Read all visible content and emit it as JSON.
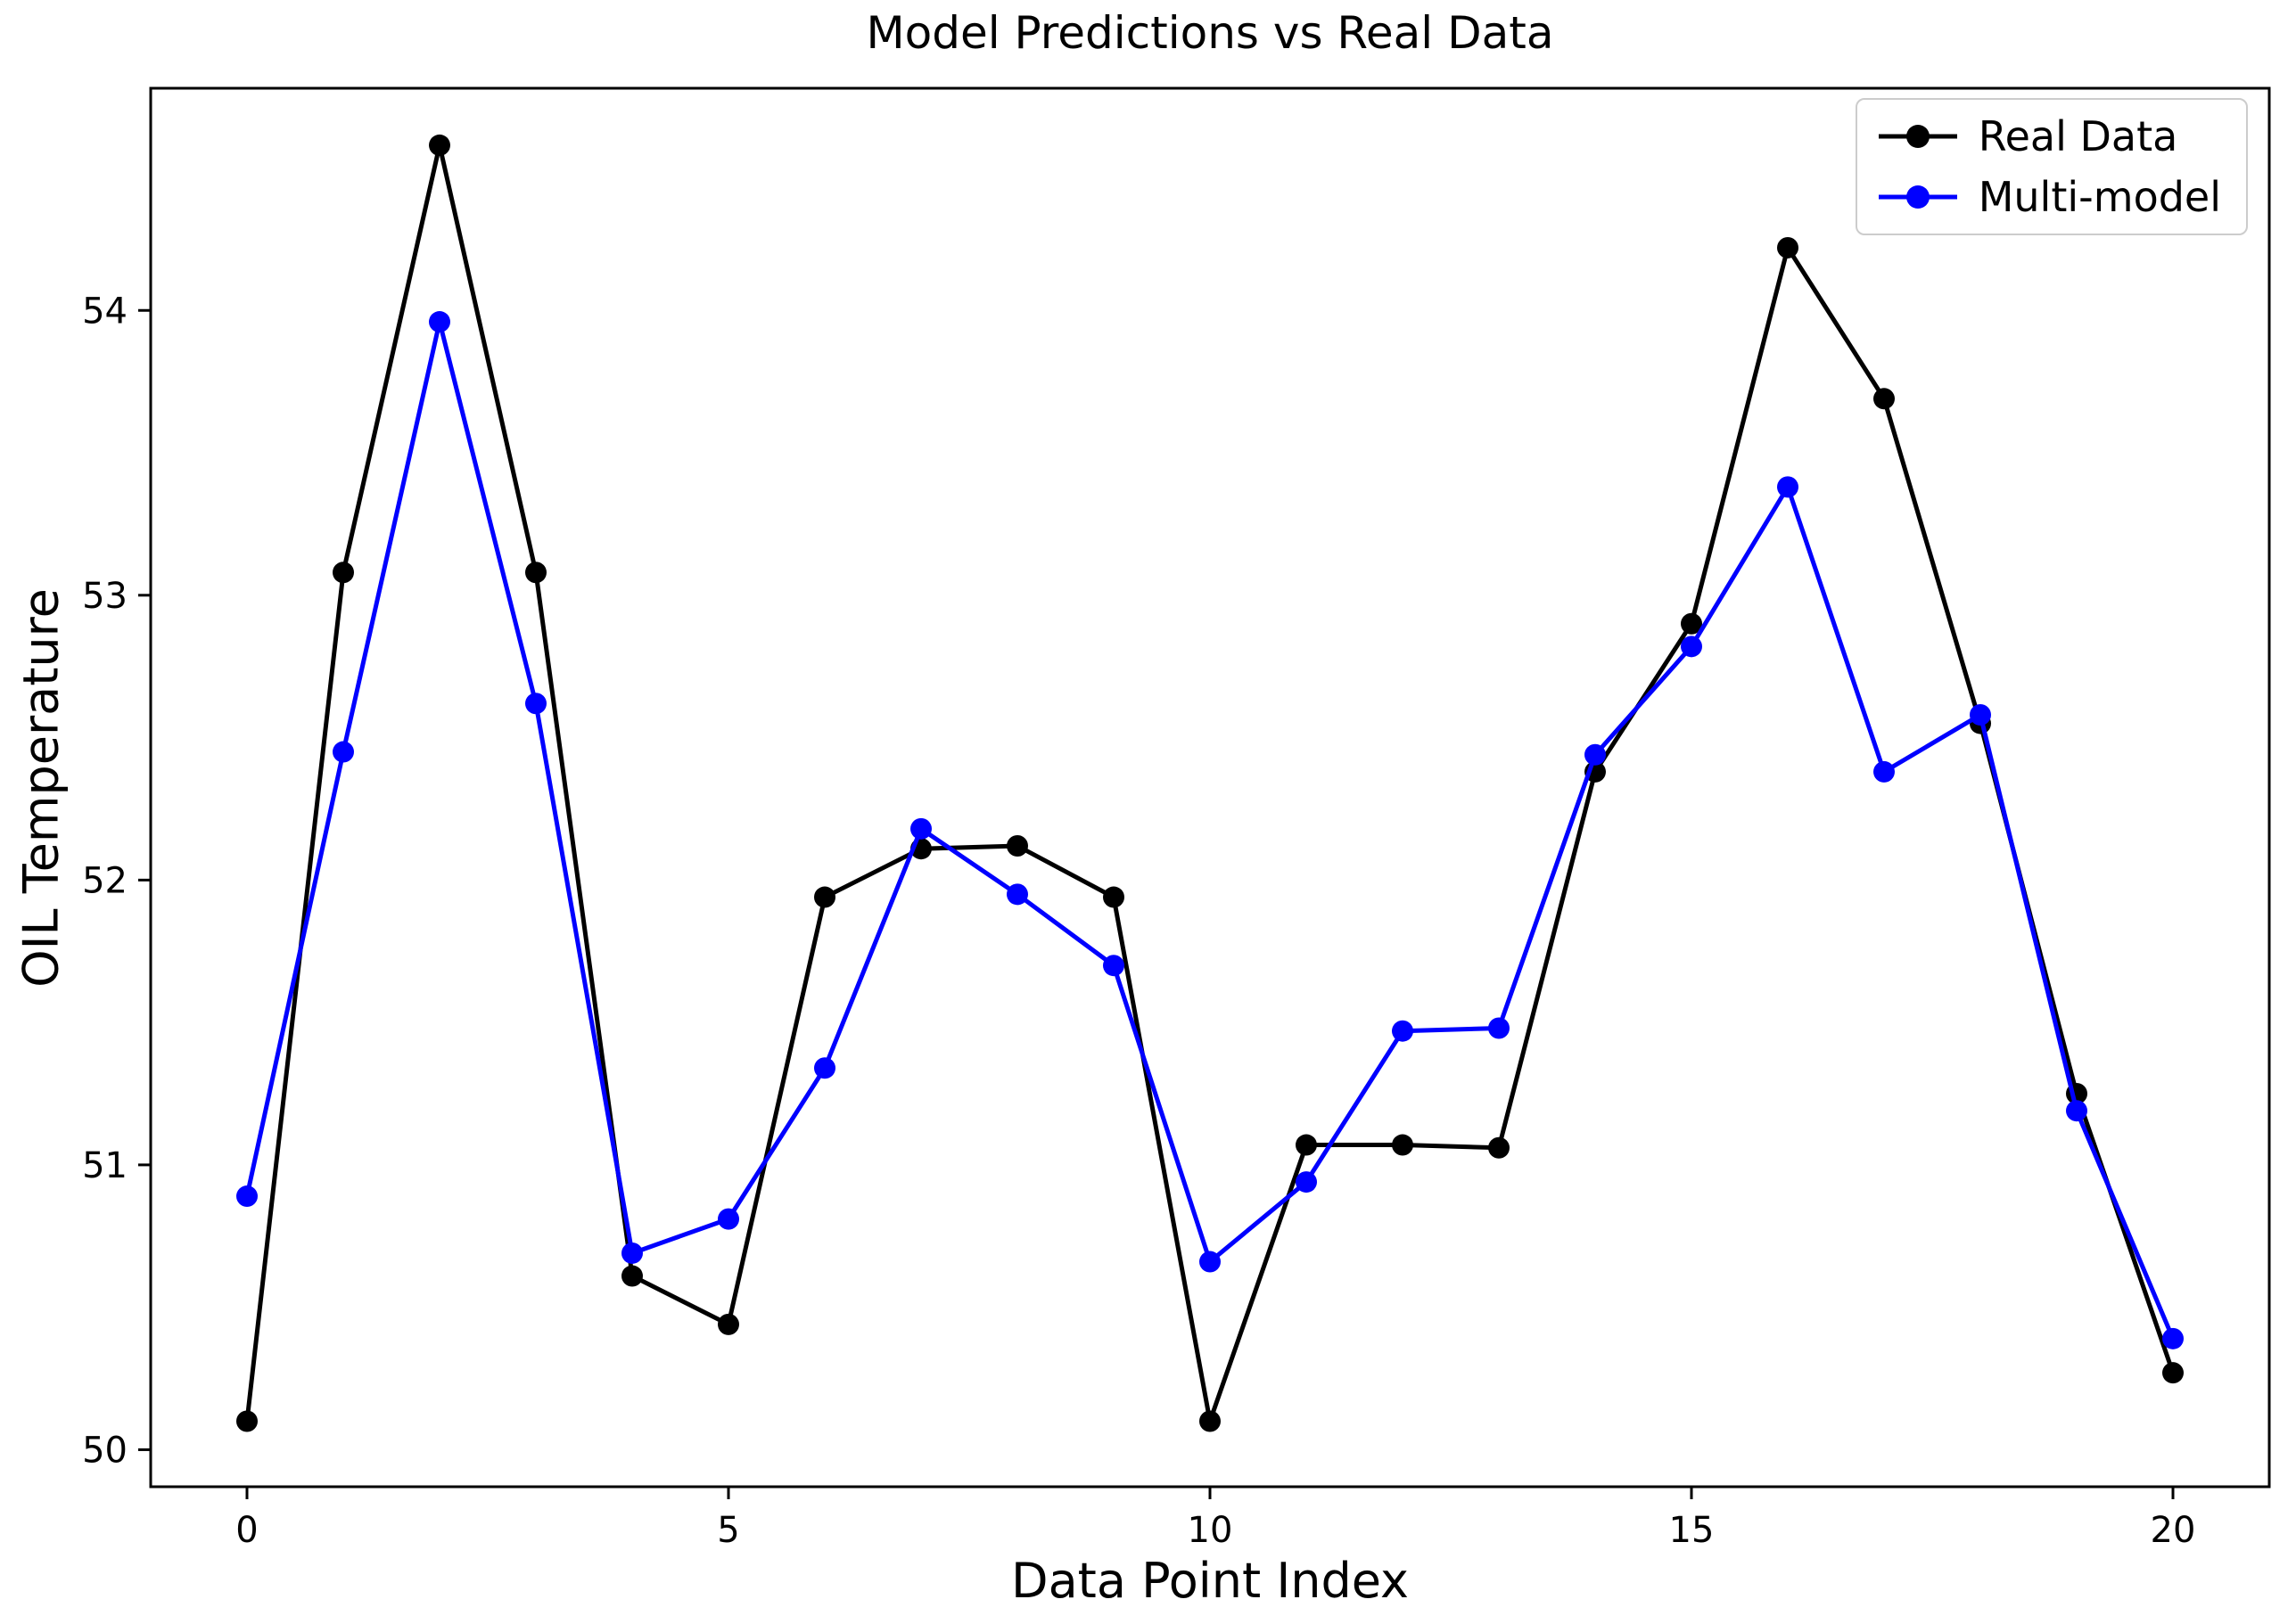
{
  "figure": {
    "background": "#ffffff"
  },
  "chart_data": {
    "type": "line",
    "title": "Model Predictions vs Real Data",
    "xlabel": "Data Point Index",
    "ylabel": "OIL Temperature",
    "x": [
      0,
      1,
      2,
      3,
      4,
      5,
      6,
      7,
      8,
      9,
      10,
      11,
      12,
      13,
      14,
      15,
      16,
      17,
      18,
      19,
      20
    ],
    "series": [
      {
        "name": "Real Data",
        "color": "#000000",
        "values": [
          50.1,
          53.08,
          54.58,
          53.08,
          50.61,
          50.44,
          51.94,
          52.11,
          52.12,
          51.94,
          50.1,
          51.07,
          51.07,
          51.06,
          52.38,
          52.9,
          54.22,
          53.69,
          52.55,
          51.25,
          50.27
        ]
      },
      {
        "name": "Multi-model",
        "color": "#0000ff",
        "values": [
          50.89,
          52.45,
          53.96,
          52.62,
          50.69,
          50.81,
          51.34,
          52.18,
          51.95,
          51.7,
          50.66,
          50.94,
          51.47,
          51.48,
          52.44,
          52.82,
          53.38,
          52.38,
          52.58,
          51.19,
          50.39
        ]
      }
    ],
    "xticks": [
      0,
      5,
      10,
      15,
      20
    ],
    "yticks": [
      50,
      51,
      52,
      53,
      54
    ],
    "xlim": [
      -1,
      21
    ],
    "ylim": [
      49.87,
      54.78
    ],
    "grid": false,
    "marker": "o",
    "legend_position": "upper right",
    "axis_color": "#000000"
  }
}
